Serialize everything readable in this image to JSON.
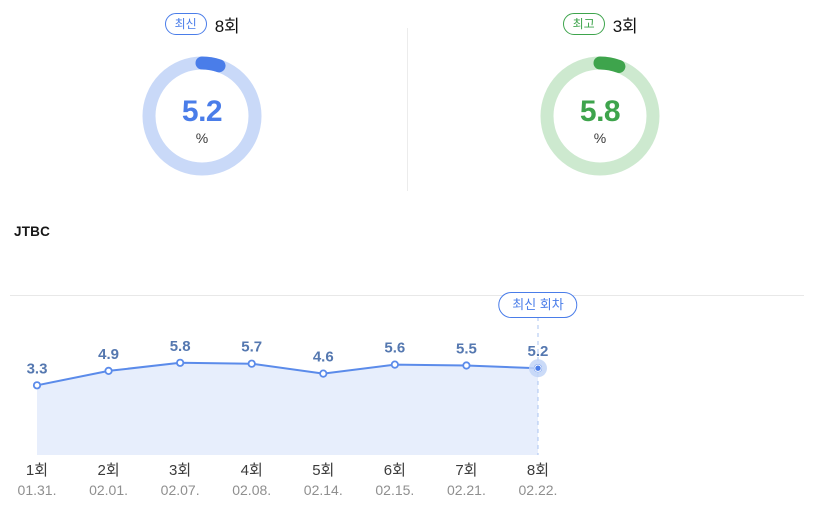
{
  "summary": {
    "latest": {
      "badge": "최신",
      "episode": "8회",
      "value": "5.2",
      "unit": "%",
      "percent": 5.2,
      "accent": "#4a7de9",
      "track": "#c9d9f8"
    },
    "highest": {
      "badge": "최고",
      "episode": "3회",
      "value": "5.8",
      "unit": "%",
      "percent": 5.8,
      "accent": "#3ea44c",
      "track": "#cde9cf"
    }
  },
  "channel_label": "JTBC",
  "chart_data": {
    "type": "area",
    "series_name": "JTBC",
    "categories": [
      "1회",
      "2회",
      "3회",
      "4회",
      "5회",
      "6회",
      "7회",
      "8회"
    ],
    "dates": [
      "01.31.",
      "02.01.",
      "02.07.",
      "02.08.",
      "02.14.",
      "02.15.",
      "02.21.",
      "02.22."
    ],
    "values": [
      3.3,
      4.9,
      5.8,
      5.7,
      4.6,
      5.6,
      5.5,
      5.2
    ],
    "annotation": {
      "label": "최신 회차",
      "index": 7
    },
    "legend": "none",
    "grid": "off",
    "colors": {
      "line": "#5b8bea",
      "area": "#e7eefc",
      "dot_stroke": "#5b8bea",
      "value_label": "#5578b0",
      "episode_label": "#3c3c3c",
      "date_label": "#8f8f8f",
      "highlight_halo": "#c2d5f7",
      "highlight_dot": "#4a7de9",
      "dashed": "#aac4f0"
    }
  }
}
